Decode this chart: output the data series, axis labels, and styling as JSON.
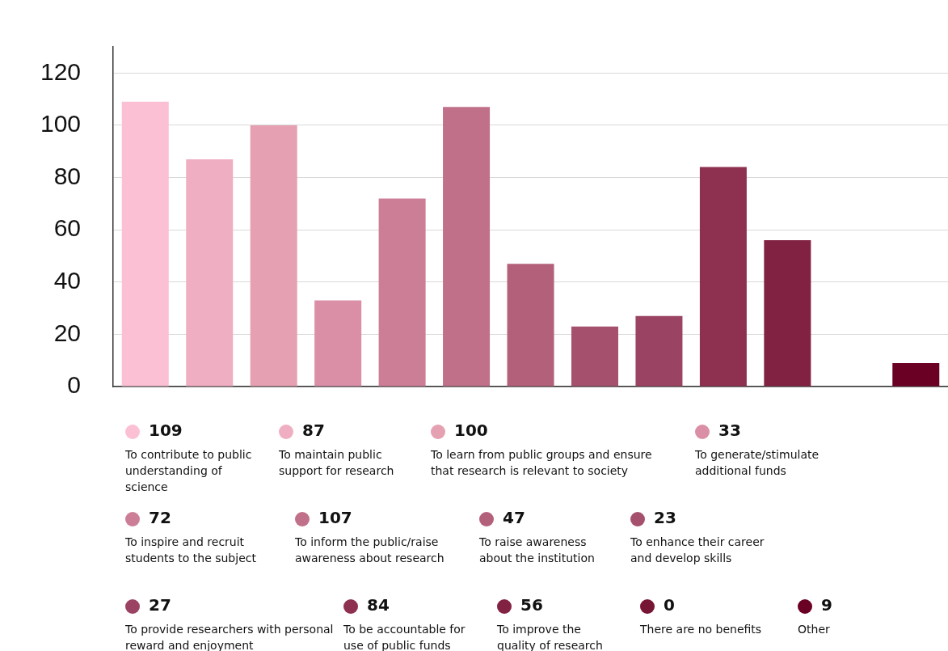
{
  "chart_data": {
    "type": "bar",
    "categories": [
      null,
      null,
      null,
      null,
      null,
      null,
      null,
      null,
      null,
      null,
      null,
      null,
      null
    ],
    "series": [
      {
        "name": "To contribute to public understanding of science",
        "color": "#fcc0d5",
        "values": [
          109,
          null,
          null,
          null,
          null,
          null,
          null,
          null,
          null,
          null,
          null,
          null,
          null
        ]
      },
      {
        "name": "To maintain public support for research",
        "color": "#f0aec2",
        "values": [
          null,
          87,
          null,
          null,
          null,
          null,
          null,
          null,
          null,
          null,
          null,
          null,
          null
        ]
      },
      {
        "name": "To learn from public groups and ensure that research is relevant to society",
        "color": "#e5a0b2",
        "values": [
          null,
          null,
          100,
          null,
          null,
          null,
          null,
          null,
          null,
          null,
          null,
          null,
          null
        ]
      },
      {
        "name": "To generate/stimulate additional funds",
        "color": "#da8fa7",
        "values": [
          null,
          null,
          null,
          33,
          null,
          null,
          null,
          null,
          null,
          null,
          null,
          null,
          null
        ]
      },
      {
        "name": "To inspire and recruit students to the subject",
        "color": "#cd7e97",
        "values": [
          null,
          null,
          null,
          null,
          72,
          null,
          null,
          null,
          null,
          null,
          null,
          null,
          null
        ]
      },
      {
        "name": "To inform the public/raise awareness about research",
        "color": "#c07089",
        "values": [
          null,
          null,
          null,
          null,
          null,
          107,
          null,
          null,
          null,
          null,
          null,
          null,
          null
        ]
      },
      {
        "name": "To raise awareness about the institution",
        "color": "#b3607b",
        "values": [
          null,
          null,
          null,
          null,
          null,
          null,
          47,
          null,
          null,
          null,
          null,
          null,
          null
        ]
      },
      {
        "name": "To enhance their career and develop skills",
        "color": "#a5506c",
        "values": [
          null,
          null,
          null,
          null,
          null,
          null,
          null,
          23,
          null,
          null,
          null,
          null,
          null
        ]
      },
      {
        "name": "To provide researchers with personal reward and enjoyment",
        "color": "#9b4362",
        "values": [
          null,
          null,
          null,
          null,
          null,
          null,
          null,
          null,
          27,
          null,
          null,
          null,
          null
        ]
      },
      {
        "name": "To be accountable for use of public funds",
        "color": "#8e3050",
        "values": [
          null,
          null,
          null,
          null,
          null,
          null,
          null,
          null,
          null,
          84,
          null,
          null,
          null
        ]
      },
      {
        "name": "To improve the quality of research",
        "color": "#822242",
        "values": [
          null,
          null,
          null,
          null,
          null,
          null,
          null,
          null,
          null,
          null,
          56,
          null,
          null
        ]
      },
      {
        "name": "There are no benefits",
        "color": "#771535",
        "values": [
          null,
          null,
          null,
          null,
          null,
          null,
          null,
          null,
          null,
          null,
          null,
          0,
          null
        ]
      },
      {
        "name": "Other",
        "color": "#6b0025",
        "values": [
          null,
          null,
          null,
          null,
          null,
          null,
          null,
          null,
          null,
          null,
          null,
          null,
          9
        ]
      }
    ],
    "ylim": [
      0,
      130
    ],
    "yticks": [
      0,
      20,
      40,
      60,
      80,
      100,
      120
    ],
    "annotations": [
      "109",
      "87",
      "100",
      "33",
      "72",
      "107",
      "47",
      "23",
      "27",
      "84",
      "56",
      "0",
      "9"
    ],
    "grid": "y",
    "tick_labels": "y",
    "legend": "bottom"
  }
}
